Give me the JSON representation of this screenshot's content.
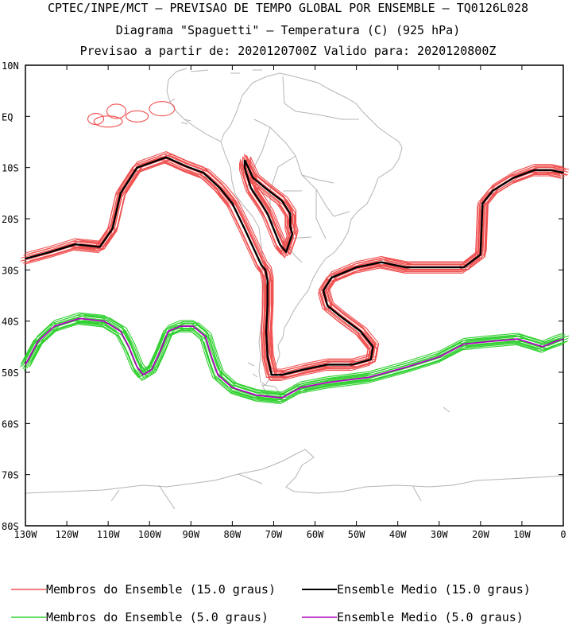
{
  "header": {
    "line1": "CPTEC/INPE/MCT – PREVISAO DE TEMPO GLOBAL POR ENSEMBLE – TQ0126L028",
    "line2": "Diagrama \"Spaguetti\" – Temperatura (C) (925 hPa)",
    "line3": "Previsao a partir de: 2020120700Z  Valido para: 2020120800Z"
  },
  "colors": {
    "member15": "#f05050",
    "mean15": "#000000",
    "member5": "#30d030",
    "mean5": "#b000c0",
    "land": "#b4b4b4"
  },
  "chart_data": {
    "type": "line",
    "xlabel": "",
    "ylabel": "",
    "xlim": [
      -130,
      0
    ],
    "ylim": [
      -80,
      10
    ],
    "x_ticks": [
      "130W",
      "120W",
      "110W",
      "100W",
      "90W",
      "80W",
      "70W",
      "60W",
      "50W",
      "40W",
      "30W",
      "20W",
      "10W",
      "0"
    ],
    "y_ticks": [
      "10N",
      "EQ",
      "10S",
      "20S",
      "30S",
      "40S",
      "50S",
      "60S",
      "70S",
      "80S"
    ],
    "series": [
      {
        "name": "Ensemble Medio (15.0 graus)",
        "role": "mean15",
        "segments": [
          [
            [
              -130,
              -27.8
            ],
            [
              -124,
              -26.5
            ],
            [
              -118,
              -25
            ],
            [
              -112,
              -25.5
            ],
            [
              -109,
              -22
            ],
            [
              -107,
              -15
            ],
            [
              -103,
              -10
            ],
            [
              -96,
              -8
            ],
            [
              -91,
              -9.8
            ],
            [
              -87,
              -11
            ],
            [
              -83,
              -14
            ],
            [
              -80,
              -17
            ],
            [
              -77,
              -22
            ],
            [
              -75,
              -25.5
            ],
            [
              -73,
              -29
            ],
            [
              -72,
              -30
            ],
            [
              -71.5,
              -32
            ],
            [
              -71.5,
              -37
            ],
            [
              -71.8,
              -42
            ],
            [
              -71.5,
              -47
            ],
            [
              -70.5,
              -50.5
            ],
            [
              -68,
              -50.5
            ],
            [
              -63,
              -49.5
            ],
            [
              -57,
              -48.5
            ],
            [
              -51,
              -48.5
            ],
            [
              -46.5,
              -47.5
            ],
            [
              -46,
              -45
            ],
            [
              -49,
              -42
            ],
            [
              -54,
              -39
            ],
            [
              -57,
              -37
            ],
            [
              -58,
              -34
            ],
            [
              -56,
              -31.5
            ],
            [
              -50,
              -29.5
            ],
            [
              -44,
              -28.5
            ],
            [
              -38,
              -29.5
            ],
            [
              -32,
              -29.5
            ],
            [
              -24,
              -29.5
            ],
            [
              -20,
              -27
            ],
            [
              -19.5,
              -17
            ],
            [
              -17,
              -14.5
            ],
            [
              -12,
              -12
            ],
            [
              -7,
              -10.5
            ],
            [
              -3,
              -10.5
            ],
            [
              0,
              -11
            ]
          ],
          [
            [
              -77,
              -8.5
            ],
            [
              -75,
              -12
            ],
            [
              -72,
              -14
            ],
            [
              -68,
              -16.5
            ],
            [
              -66,
              -19
            ],
            [
              -66,
              -21.5
            ],
            [
              -65.5,
              -23
            ],
            [
              -67,
              -26.5
            ],
            [
              -68.5,
              -25
            ],
            [
              -70,
              -22
            ],
            [
              -71.5,
              -19
            ],
            [
              -73,
              -17
            ],
            [
              -75.5,
              -14
            ],
            [
              -77,
              -10
            ],
            [
              -77,
              -8.5
            ]
          ]
        ]
      },
      {
        "name": "Ensemble Medio (5.0 graus)",
        "role": "mean5",
        "segments": [
          [
            [
              -130,
              -48.5
            ],
            [
              -127,
              -44
            ],
            [
              -123,
              -41
            ],
            [
              -117,
              -39.5
            ],
            [
              -111,
              -40
            ],
            [
              -107,
              -42
            ],
            [
              -105,
              -45
            ],
            [
              -103,
              -49
            ],
            [
              -101.5,
              -50.5
            ],
            [
              -99.5,
              -49.5
            ],
            [
              -97.5,
              -46
            ],
            [
              -95.5,
              -42
            ],
            [
              -92.5,
              -41
            ],
            [
              -89.5,
              -41
            ],
            [
              -86.5,
              -43
            ],
            [
              -85,
              -47
            ],
            [
              -83.5,
              -50.5
            ],
            [
              -80,
              -53
            ],
            [
              -74,
              -54.5
            ],
            [
              -68,
              -55
            ],
            [
              -63.5,
              -53
            ],
            [
              -57,
              -52
            ],
            [
              -47,
              -51
            ],
            [
              -38,
              -49
            ],
            [
              -30,
              -47
            ],
            [
              -24,
              -44.5
            ],
            [
              -18,
              -44
            ],
            [
              -11,
              -43.5
            ],
            [
              -5,
              -45
            ],
            [
              -2,
              -44
            ],
            [
              0,
              -43.5
            ]
          ]
        ]
      }
    ]
  },
  "legend": {
    "items": [
      {
        "label": "Membros do Ensemble (15.0 graus)",
        "role": "member15"
      },
      {
        "label": "Ensemble Medio (15.0 graus)",
        "role": "mean15"
      },
      {
        "label": "Membros do Ensemble (5.0 graus)",
        "role": "member5"
      },
      {
        "label": "Ensemble Medio (5.0 graus)",
        "role": "mean5"
      }
    ]
  }
}
